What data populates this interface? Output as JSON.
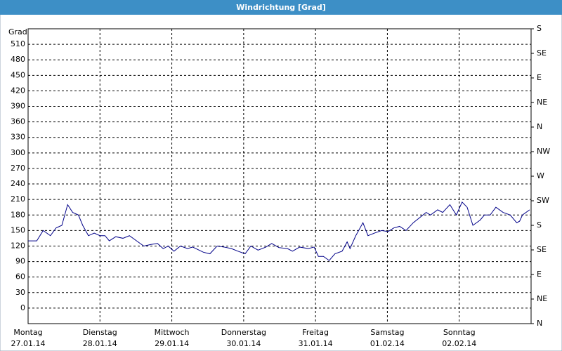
{
  "chart_data": {
    "type": "line",
    "title": "Windrichtung [Grad]",
    "y_label": "Grad",
    "x": [
      0,
      0.12,
      0.21,
      0.31,
      0.39,
      0.47,
      0.55,
      0.62,
      0.7,
      0.76,
      0.84,
      0.92,
      1.0,
      1.07,
      1.13,
      1.22,
      1.32,
      1.41,
      1.51,
      1.61,
      1.71,
      1.8,
      1.88,
      1.95,
      2.03,
      2.12,
      2.22,
      2.29,
      2.44,
      2.53,
      2.63,
      2.73,
      2.83,
      2.92,
      3.02,
      3.1,
      3.2,
      3.31,
      3.39,
      3.49,
      3.61,
      3.68,
      3.78,
      3.9,
      3.98,
      4.04,
      4.11,
      4.19,
      4.27,
      4.37,
      4.44,
      4.48,
      4.56,
      4.6,
      4.66,
      4.73,
      4.82,
      4.92,
      5.01,
      5.09,
      5.17,
      5.26,
      5.36,
      5.54,
      5.6,
      5.7,
      5.77,
      5.87,
      5.96,
      6.04,
      6.11,
      6.19,
      6.29,
      6.35,
      6.43,
      6.51,
      6.61,
      6.71,
      6.8,
      6.84,
      6.88,
      6.98
    ],
    "series": [
      {
        "name": "Windrichtung",
        "color": "#000088",
        "values": [
          130,
          130,
          150,
          140,
          155,
          160,
          200,
          185,
          180,
          160,
          140,
          145,
          140,
          140,
          130,
          138,
          135,
          140,
          130,
          120,
          123,
          125,
          115,
          120,
          110,
          120,
          115,
          118,
          108,
          105,
          120,
          118,
          115,
          110,
          105,
          120,
          112,
          118,
          125,
          117,
          115,
          110,
          118,
          115,
          118,
          100,
          100,
          92,
          105,
          110,
          128,
          115,
          140,
          150,
          165,
          140,
          145,
          150,
          148,
          155,
          158,
          150,
          165,
          185,
          180,
          190,
          185,
          200,
          180,
          205,
          195,
          160,
          170,
          180,
          180,
          195,
          185,
          180,
          165,
          168,
          180,
          190
        ]
      }
    ],
    "xlim": [
      0,
      7
    ],
    "xticks": [
      {
        "value": 0,
        "label": "Montag"
      },
      {
        "value": 1,
        "label": "Dienstag"
      },
      {
        "value": 2,
        "label": "Mittwoch"
      },
      {
        "value": 3,
        "label": "Donnerstag"
      },
      {
        "value": 4,
        "label": "Freitag"
      },
      {
        "value": 5,
        "label": "Samstag"
      },
      {
        "value": 6,
        "label": "Sonntag"
      }
    ],
    "xtick_dates": [
      "27.01.14",
      "28.01.14",
      "29.01.14",
      "30.01.14",
      "31.01.14",
      "01.02.14",
      "02.02.14"
    ],
    "ylim": [
      -30,
      540
    ],
    "yticks": [
      0,
      30,
      60,
      90,
      120,
      150,
      180,
      210,
      240,
      270,
      300,
      330,
      360,
      390,
      420,
      450,
      480,
      510
    ],
    "y2lim": [
      0,
      12
    ],
    "y2ticks": [
      {
        "value": 0,
        "label": "N"
      },
      {
        "value": 1,
        "label": "NE"
      },
      {
        "value": 2,
        "label": "E"
      },
      {
        "value": 3,
        "label": "SE"
      },
      {
        "value": 4,
        "label": "S"
      },
      {
        "value": 5,
        "label": "SW"
      },
      {
        "value": 6,
        "label": "W"
      },
      {
        "value": 7,
        "label": "NW"
      },
      {
        "value": 8,
        "label": "N"
      },
      {
        "value": 9,
        "label": "NE"
      },
      {
        "value": 10,
        "label": "E"
      },
      {
        "value": 11,
        "label": "SE"
      },
      {
        "value": 12,
        "label": "S"
      }
    ],
    "grid": true
  }
}
